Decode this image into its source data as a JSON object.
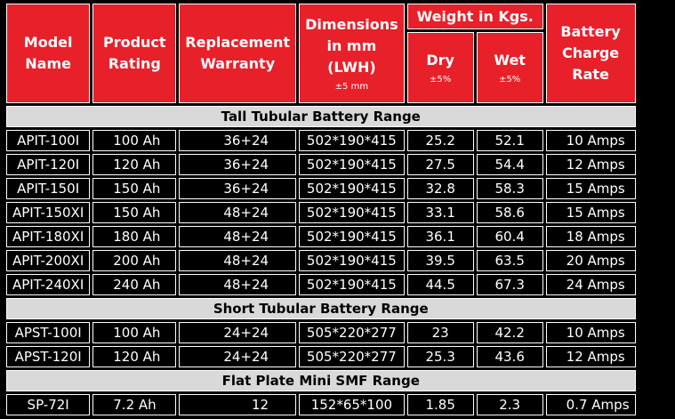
{
  "table": {
    "header": {
      "model": "Model Name",
      "rating": "Product Rating",
      "warranty": "Replacement Warranty",
      "dimensions": "Dimensions in mm (LWH)",
      "dimensions_note": "±5 mm",
      "weight": "Weight in Kgs.",
      "dry": "Dry",
      "dry_note": "±5%",
      "wet": "Wet",
      "wet_note": "±5%",
      "charge": "Battery Charge Rate"
    },
    "sections": [
      {
        "title": "Tall Tubular Battery Range",
        "rows": [
          [
            "APIT-100I",
            "100 Ah",
            "36+24",
            "502*190*415",
            "25.2",
            "52.1",
            "10 Amps"
          ],
          [
            "APIT-120I",
            "120 Ah",
            "36+24",
            "502*190*415",
            "27.5",
            "54.4",
            "12 Amps"
          ],
          [
            "APIT-150I",
            "150 Ah",
            "36+24",
            "502*190*415",
            "32.8",
            "58.3",
            "15 Amps"
          ],
          [
            "APIT-150XI",
            "150 Ah",
            "48+24",
            "502*190*415",
            "33.1",
            "58.6",
            "15 Amps"
          ],
          [
            "APIT-180XI",
            "180 Ah",
            "48+24",
            "502*190*415",
            "36.1",
            "60.4",
            "18 Amps"
          ],
          [
            "APIT-200XI",
            "200 Ah",
            "48+24",
            "502*190*415",
            "39.5",
            "63.5",
            "20 Amps"
          ],
          [
            "APIT-240XI",
            "240 Ah",
            "48+24",
            "502*190*415",
            "44.5",
            "67.3",
            "24 Amps"
          ]
        ]
      },
      {
        "title": "Short Tubular Battery Range",
        "rows": [
          [
            "APST-100I",
            "100 Ah",
            "24+24",
            "505*220*277",
            "23",
            "42.2",
            "10 Amps"
          ],
          [
            "APST-120I",
            "120 Ah",
            "24+24",
            "505*220*277",
            "25.3",
            "43.6",
            "12 Amps"
          ]
        ]
      },
      {
        "title": "Flat Plate Mini SMF Range",
        "rows": [
          [
            "SP-72I",
            "7.2 Ah",
            "12",
            "152*65*100",
            "1.85",
            "2.3",
            "0.7 Amps"
          ]
        ]
      }
    ]
  }
}
